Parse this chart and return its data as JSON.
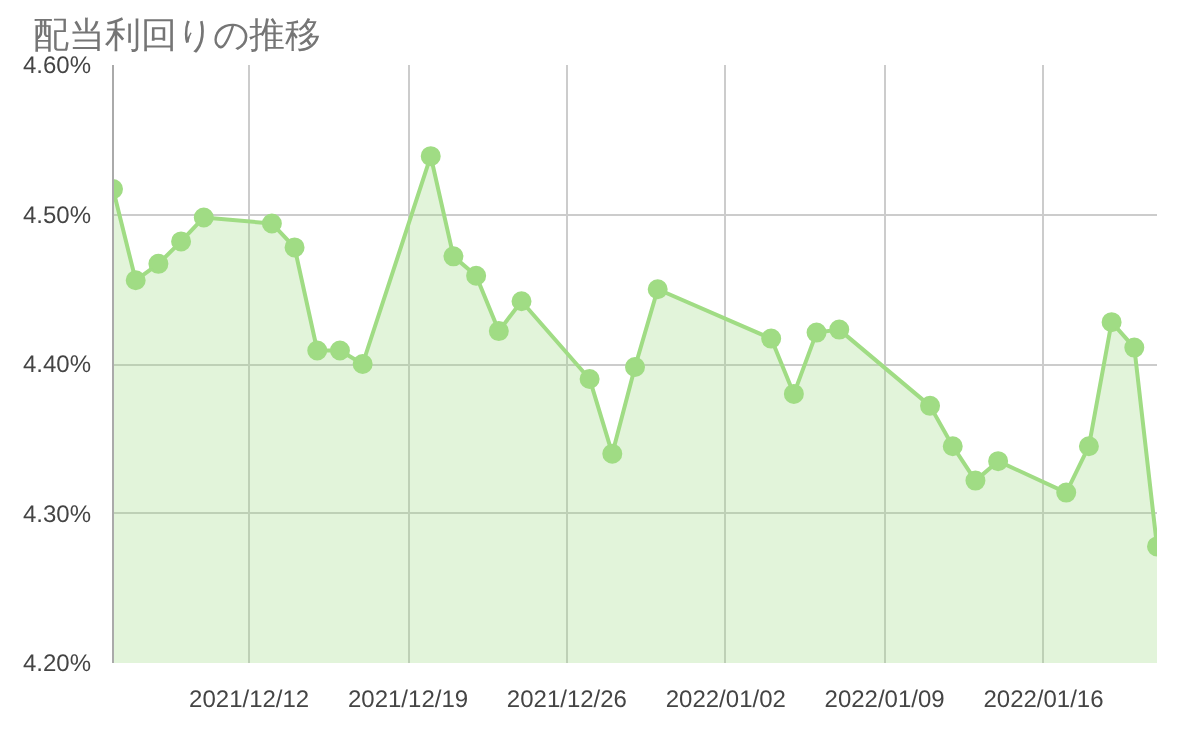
{
  "chart_data": {
    "type": "area",
    "title": "配当利回りの推移",
    "x": [
      "2021-12-06",
      "2021-12-07",
      "2021-12-08",
      "2021-12-09",
      "2021-12-10",
      "2021-12-13",
      "2021-12-14",
      "2021-12-15",
      "2021-12-16",
      "2021-12-17",
      "2021-12-20",
      "2021-12-21",
      "2021-12-22",
      "2021-12-23",
      "2021-12-24",
      "2021-12-27",
      "2021-12-28",
      "2021-12-29",
      "2021-12-30",
      "2022-01-04",
      "2022-01-05",
      "2022-01-06",
      "2022-01-07",
      "2022-01-11",
      "2022-01-12",
      "2022-01-13",
      "2022-01-14",
      "2022-01-17",
      "2022-01-18",
      "2022-01-19",
      "2022-01-20",
      "2022-01-21"
    ],
    "series": [
      {
        "color": "#a0dc84",
        "values": [
          4.517,
          4.456,
          4.467,
          4.482,
          4.498,
          4.494,
          4.478,
          4.409,
          4.409,
          4.4,
          4.539,
          4.472,
          4.459,
          4.422,
          4.442,
          4.39,
          4.34,
          4.398,
          4.45,
          4.417,
          4.38,
          4.421,
          4.423,
          4.372,
          4.345,
          4.322,
          4.335,
          4.314,
          4.345,
          4.428,
          4.411,
          4.278
        ]
      }
    ],
    "xlim": [
      "2021-12-06",
      "2022-01-21"
    ],
    "xticks": [
      {
        "value": "2021-12-12",
        "label": "2021/12/12"
      },
      {
        "value": "2021-12-19",
        "label": "2021/12/19"
      },
      {
        "value": "2021-12-26",
        "label": "2021/12/26"
      },
      {
        "value": "2022-01-02",
        "label": "2022/01/02"
      },
      {
        "value": "2022-01-09",
        "label": "2022/01/09"
      },
      {
        "value": "2022-01-16",
        "label": "2022/01/16"
      }
    ],
    "ylim": [
      4.2,
      4.6
    ],
    "yticks": [
      {
        "value": 4.2,
        "label": "4.20%"
      },
      {
        "value": 4.3,
        "label": "4.30%"
      },
      {
        "value": 4.4,
        "label": "4.40%"
      },
      {
        "value": 4.5,
        "label": "4.50%"
      },
      {
        "value": 4.6,
        "label": "4.60%"
      }
    ],
    "grid": true,
    "marker": "circle",
    "line_style": "solid"
  }
}
